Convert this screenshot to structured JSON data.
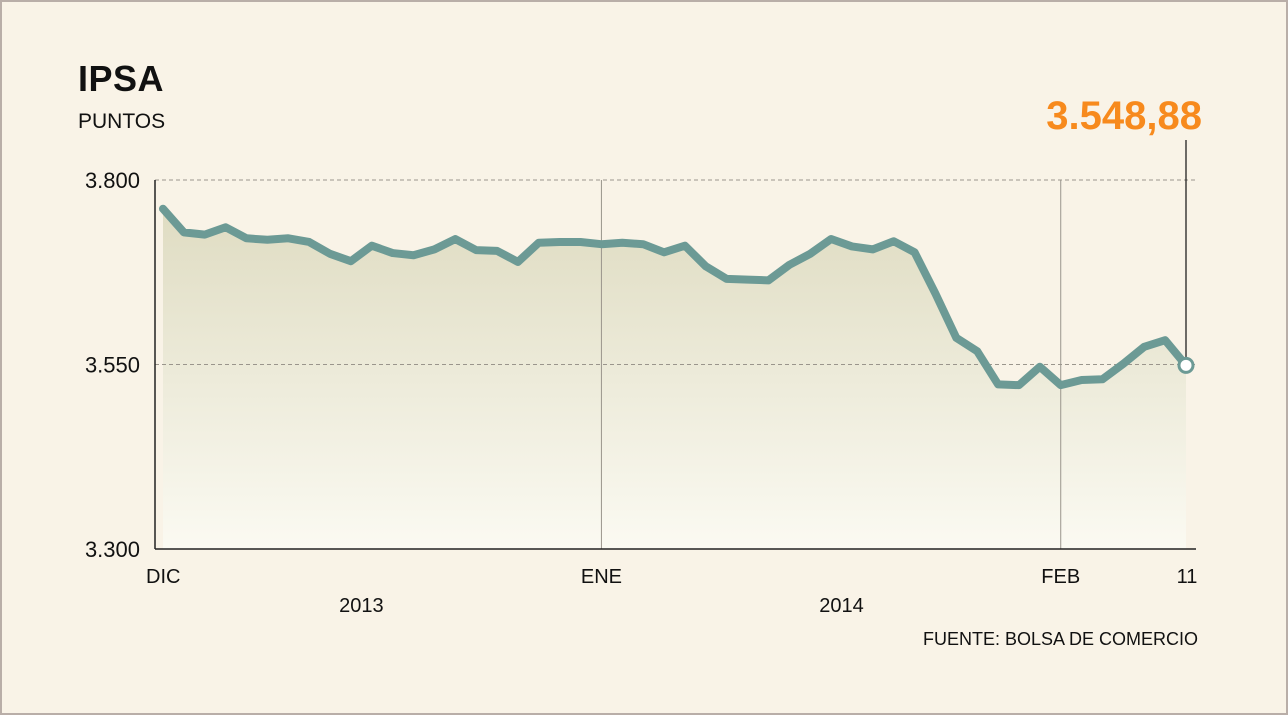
{
  "colors": {
    "line": "#6c9a95",
    "highlight": "#f78a1d",
    "area_top": "#dfdcc2",
    "area_bottom": "#fbfaf2",
    "grid": "#9a958c",
    "background": "#f9f3e7"
  },
  "source": "FUENTE: BOLSA DE COMERCIO",
  "chart_data": {
    "type": "line",
    "title": "IPSA",
    "ylabel": "PUNTOS",
    "ylim": [
      3300,
      3800
    ],
    "yticks": [
      {
        "value": 3800,
        "label": "3.800"
      },
      {
        "value": 3550,
        "label": "3.550"
      },
      {
        "value": 3300,
        "label": "3.300"
      }
    ],
    "grid": "horizontal dashed at 3.800 and 3.550; vertical lines at ENE and FEB",
    "xticks": [
      {
        "index": 0,
        "label": "DIC"
      },
      {
        "index": 21,
        "label": "ENE"
      },
      {
        "index": 43,
        "label": "FEB"
      },
      {
        "index": 49,
        "label": "11"
      }
    ],
    "period_labels": [
      {
        "index": 9.5,
        "label": "2013"
      },
      {
        "index": 32.5,
        "label": "2014"
      }
    ],
    "vertical_lines_at": [
      21,
      43
    ],
    "last_value_label": "3.548,88",
    "series": [
      {
        "values": [
          3761,
          3729,
          3726,
          3736,
          3721,
          3719,
          3721,
          3716,
          3700,
          3690,
          3711,
          3701,
          3698,
          3706,
          3720,
          3705,
          3704,
          3689,
          3715,
          3716,
          3716,
          3713,
          3715,
          3713,
          3702,
          3711,
          3683,
          3666,
          3665,
          3664,
          3685,
          3700,
          3720,
          3710,
          3706,
          3717,
          3702,
          3646,
          3586,
          3568,
          3523,
          3522,
          3547,
          3522,
          3529,
          3530,
          3551,
          3574,
          3583,
          3548.88
        ]
      }
    ]
  }
}
